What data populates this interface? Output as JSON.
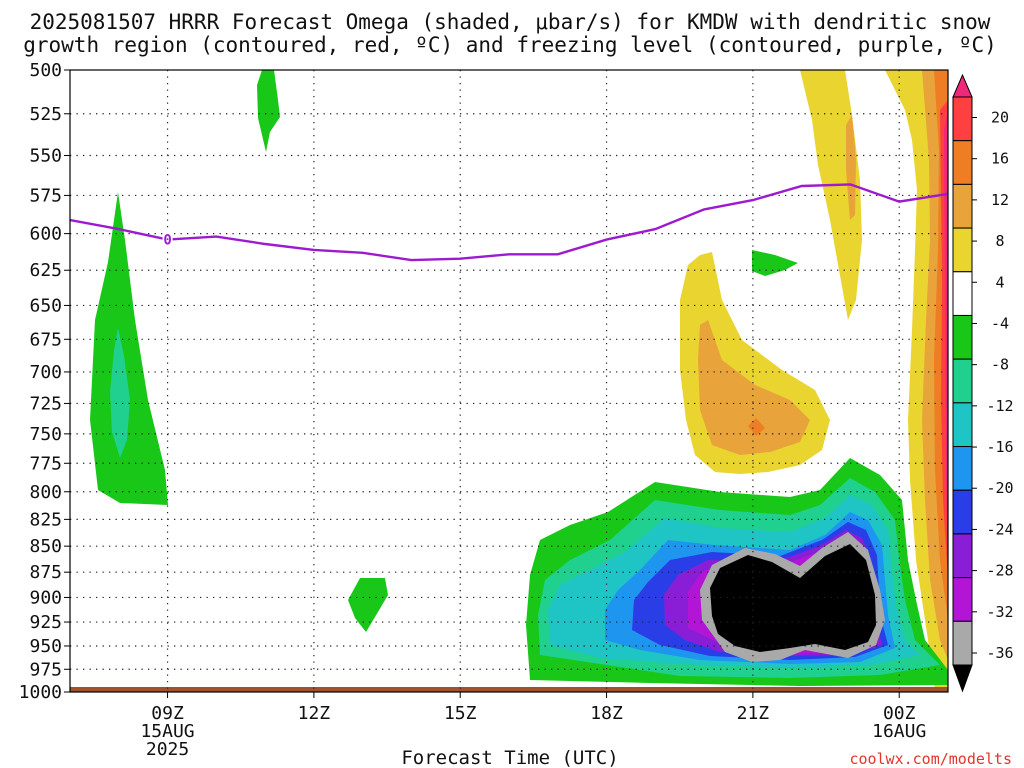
{
  "title": {
    "line1": "2025081507 HRRR Forecast Omega (shaded, μbar/s) for KMDW with dendritic snow",
    "line2": "growth region (contoured, red, ºC) and freezing level (contoured, purple, ºC)"
  },
  "credit": "coolwx.com/modelts",
  "chart_data": {
    "type": "time-height contour",
    "title": "2025081507 HRRR Forecast Omega (shaded, μbar/s) for KMDW with dendritic snow growth region (contoured, red, ºC) and freezing level (contoured, purple, ºC)",
    "xlabel": "Forecast Time (UTC)",
    "ylabel": "",
    "y_scale": "log",
    "y_reversed": true,
    "y_ticks": [
      500,
      525,
      550,
      575,
      600,
      625,
      650,
      675,
      700,
      725,
      750,
      775,
      800,
      825,
      850,
      875,
      900,
      925,
      950,
      975,
      1000
    ],
    "ylim": [
      500,
      1000
    ],
    "x_range_utc": [
      "2025-08-15T07:00Z",
      "2025-08-16T01:00Z"
    ],
    "x_ticks": [
      {
        "time": "2025-08-15T09:00Z",
        "label": [
          "09Z",
          "15AUG",
          "2025"
        ]
      },
      {
        "time": "2025-08-15T12:00Z",
        "label": [
          "12Z"
        ]
      },
      {
        "time": "2025-08-15T15:00Z",
        "label": [
          "15Z"
        ]
      },
      {
        "time": "2025-08-15T18:00Z",
        "label": [
          "18Z"
        ]
      },
      {
        "time": "2025-08-15T21:00Z",
        "label": [
          "21Z"
        ]
      },
      {
        "time": "2025-08-16T00:00Z",
        "label": [
          "00Z",
          "16AUG"
        ]
      }
    ],
    "grid": true,
    "colorbar": {
      "units": "μbar/s",
      "levels": [
        20,
        16,
        12,
        8,
        4,
        -4,
        -8,
        -12,
        -16,
        -20,
        -24,
        -28,
        -32,
        -36
      ],
      "colors": [
        {
          "range": "> 20",
          "color": "#f0287a"
        },
        {
          "range": "16 to 20",
          "color": "#ff4040"
        },
        {
          "range": "12 to 16",
          "color": "#ef7d24"
        },
        {
          "range": "8 to 12",
          "color": "#e8a33a"
        },
        {
          "range": "4 to 8",
          "color": "#ead430"
        },
        {
          "range": "-4 to 4",
          "color": "#ffffff"
        },
        {
          "range": "-8 to -4",
          "color": "#19c719"
        },
        {
          "range": "-12 to -8",
          "color": "#1fd08e"
        },
        {
          "range": "-16 to -12",
          "color": "#1fc4c4"
        },
        {
          "range": "-20 to -16",
          "color": "#1e96f0"
        },
        {
          "range": "-24 to -20",
          "color": "#2a3ee8"
        },
        {
          "range": "-28 to -24",
          "color": "#8a1ed6"
        },
        {
          "range": "-32 to -28",
          "color": "#b215d6"
        },
        {
          "range": "-36 to -32",
          "color": "#a9a9a9"
        },
        {
          "range": "< -36",
          "color": "#000000"
        }
      ]
    },
    "freezing_level": {
      "contour_value": "0",
      "color": "#9d1ad0",
      "points": [
        {
          "time": "2025-08-15T07:00Z",
          "hPa": 591
        },
        {
          "time": "2025-08-15T08:00Z",
          "hPa": 597
        },
        {
          "time": "2025-08-15T09:00Z",
          "hPa": 604
        },
        {
          "time": "2025-08-15T10:00Z",
          "hPa": 602
        },
        {
          "time": "2025-08-15T11:00Z",
          "hPa": 607
        },
        {
          "time": "2025-08-15T12:00Z",
          "hPa": 611
        },
        {
          "time": "2025-08-15T13:00Z",
          "hPa": 613
        },
        {
          "time": "2025-08-15T14:00Z",
          "hPa": 618
        },
        {
          "time": "2025-08-15T15:00Z",
          "hPa": 617
        },
        {
          "time": "2025-08-15T16:00Z",
          "hPa": 614
        },
        {
          "time": "2025-08-15T17:00Z",
          "hPa": 614
        },
        {
          "time": "2025-08-15T18:00Z",
          "hPa": 604
        },
        {
          "time": "2025-08-15T19:00Z",
          "hPa": 597
        },
        {
          "time": "2025-08-15T20:00Z",
          "hPa": 584
        },
        {
          "time": "2025-08-15T21:00Z",
          "hPa": 578
        },
        {
          "time": "2025-08-15T22:00Z",
          "hPa": 569
        },
        {
          "time": "2025-08-15T23:00Z",
          "hPa": 568
        },
        {
          "time": "2025-08-16T00:00Z",
          "hPa": 579
        },
        {
          "time": "2025-08-16T01:00Z",
          "hPa": 574
        }
      ]
    }
  }
}
